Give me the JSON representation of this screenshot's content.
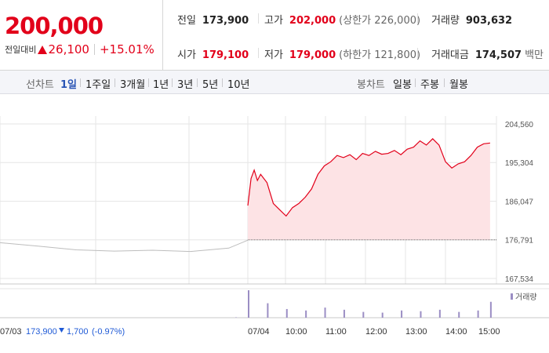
{
  "summary": {
    "current_price": "200,000",
    "change_label": "전일대비",
    "change_value": "26,100",
    "change_pct": "+15.01%",
    "stats": [
      {
        "label": "전일",
        "value": "173,900",
        "sub": "",
        "color": "black"
      },
      {
        "label": "고가",
        "value": "202,000",
        "sub": "(상한가 226,000)",
        "color": "red"
      },
      {
        "label": "거래량",
        "value": "903,632",
        "sub": "",
        "color": "black"
      },
      {
        "label": "시가",
        "value": "179,100",
        "sub": "",
        "color": "red"
      },
      {
        "label": "저가",
        "value": "179,000",
        "sub": "(하한가 121,800)",
        "color": "red"
      },
      {
        "label": "거래대금",
        "value": "174,507",
        "sub": "백만",
        "color": "black"
      }
    ]
  },
  "toolbar": {
    "line_label": "선차트",
    "line_ranges": [
      "1일",
      "1주일",
      "3개월",
      "1년",
      "3년",
      "5년",
      "10년"
    ],
    "active_range": "1일",
    "candle_label": "봉차트",
    "candle_ranges": [
      "일봉",
      "주봉",
      "월봉"
    ]
  },
  "colors": {
    "up": "#e2001a",
    "down": "#1f5ad6",
    "fill": "#fde3e5",
    "prev": "#bdbdbd",
    "volume": "#9b8ec4",
    "grid": "#e6e6e6"
  },
  "chart_data": {
    "type": "line",
    "y_ticks": [
      "204,560",
      "195,304",
      "186,047",
      "176,791",
      "167,534"
    ],
    "ylim": [
      167534,
      204560
    ],
    "grid": true,
    "prev_day": {
      "date": "07/03",
      "close": "173,900",
      "change": "1,700",
      "change_pct": "(-0.97%)"
    },
    "x_labels": [
      "07/03",
      "07/04",
      "10:00",
      "11:00",
      "12:00",
      "13:00",
      "14:00",
      "15:00"
    ],
    "volume_label": "거래량",
    "reference_price": 176791,
    "series": [
      {
        "x": [
          "07/03 09:00",
          "07/03 10:00",
          "07/03 11:00",
          "07/03 12:00",
          "07/03 13:00",
          "07/03 14:00",
          "07/03 15:00",
          "07/04 09:00"
        ],
        "values": [
          176100,
          175300,
          174400,
          174100,
          174300,
          174000,
          174800,
          176700
        ]
      },
      {
        "x": [
          "09:00",
          "09:05",
          "09:10",
          "09:15",
          "09:20",
          "09:30",
          "09:40",
          "09:50",
          "10:00",
          "10:10",
          "10:20",
          "10:30",
          "10:40",
          "10:50",
          "11:00",
          "11:10",
          "11:20",
          "11:30",
          "11:40",
          "11:50",
          "12:00",
          "12:10",
          "12:20",
          "12:30",
          "12:40",
          "12:50",
          "13:00",
          "13:10",
          "13:20",
          "13:30",
          "13:40",
          "13:50",
          "14:00",
          "14:10",
          "14:20",
          "14:30",
          "14:40",
          "14:50",
          "15:00",
          "15:10",
          "15:20"
        ],
        "values": [
          185000,
          191500,
          193500,
          191000,
          192500,
          190500,
          185500,
          184000,
          182500,
          184500,
          185500,
          187000,
          189000,
          192500,
          194500,
          195500,
          197000,
          196500,
          197200,
          196000,
          197500,
          197000,
          198000,
          197300,
          197500,
          198200,
          197200,
          198500,
          199000,
          200500,
          199500,
          201000,
          199500,
          195500,
          194000,
          195000,
          195500,
          197000,
          199000,
          199800,
          200000
        ]
      }
    ],
    "volume": {
      "x": [
        "07/03",
        "09:00",
        "09:30",
        "10:00",
        "10:30",
        "11:00",
        "11:30",
        "12:00",
        "12:30",
        "13:00",
        "13:30",
        "14:00",
        "14:30",
        "15:00",
        "15:20"
      ],
      "values": [
        0.5,
        38,
        20,
        12,
        10,
        14,
        11,
        8,
        7,
        10,
        9,
        11,
        8,
        10,
        22
      ]
    }
  }
}
